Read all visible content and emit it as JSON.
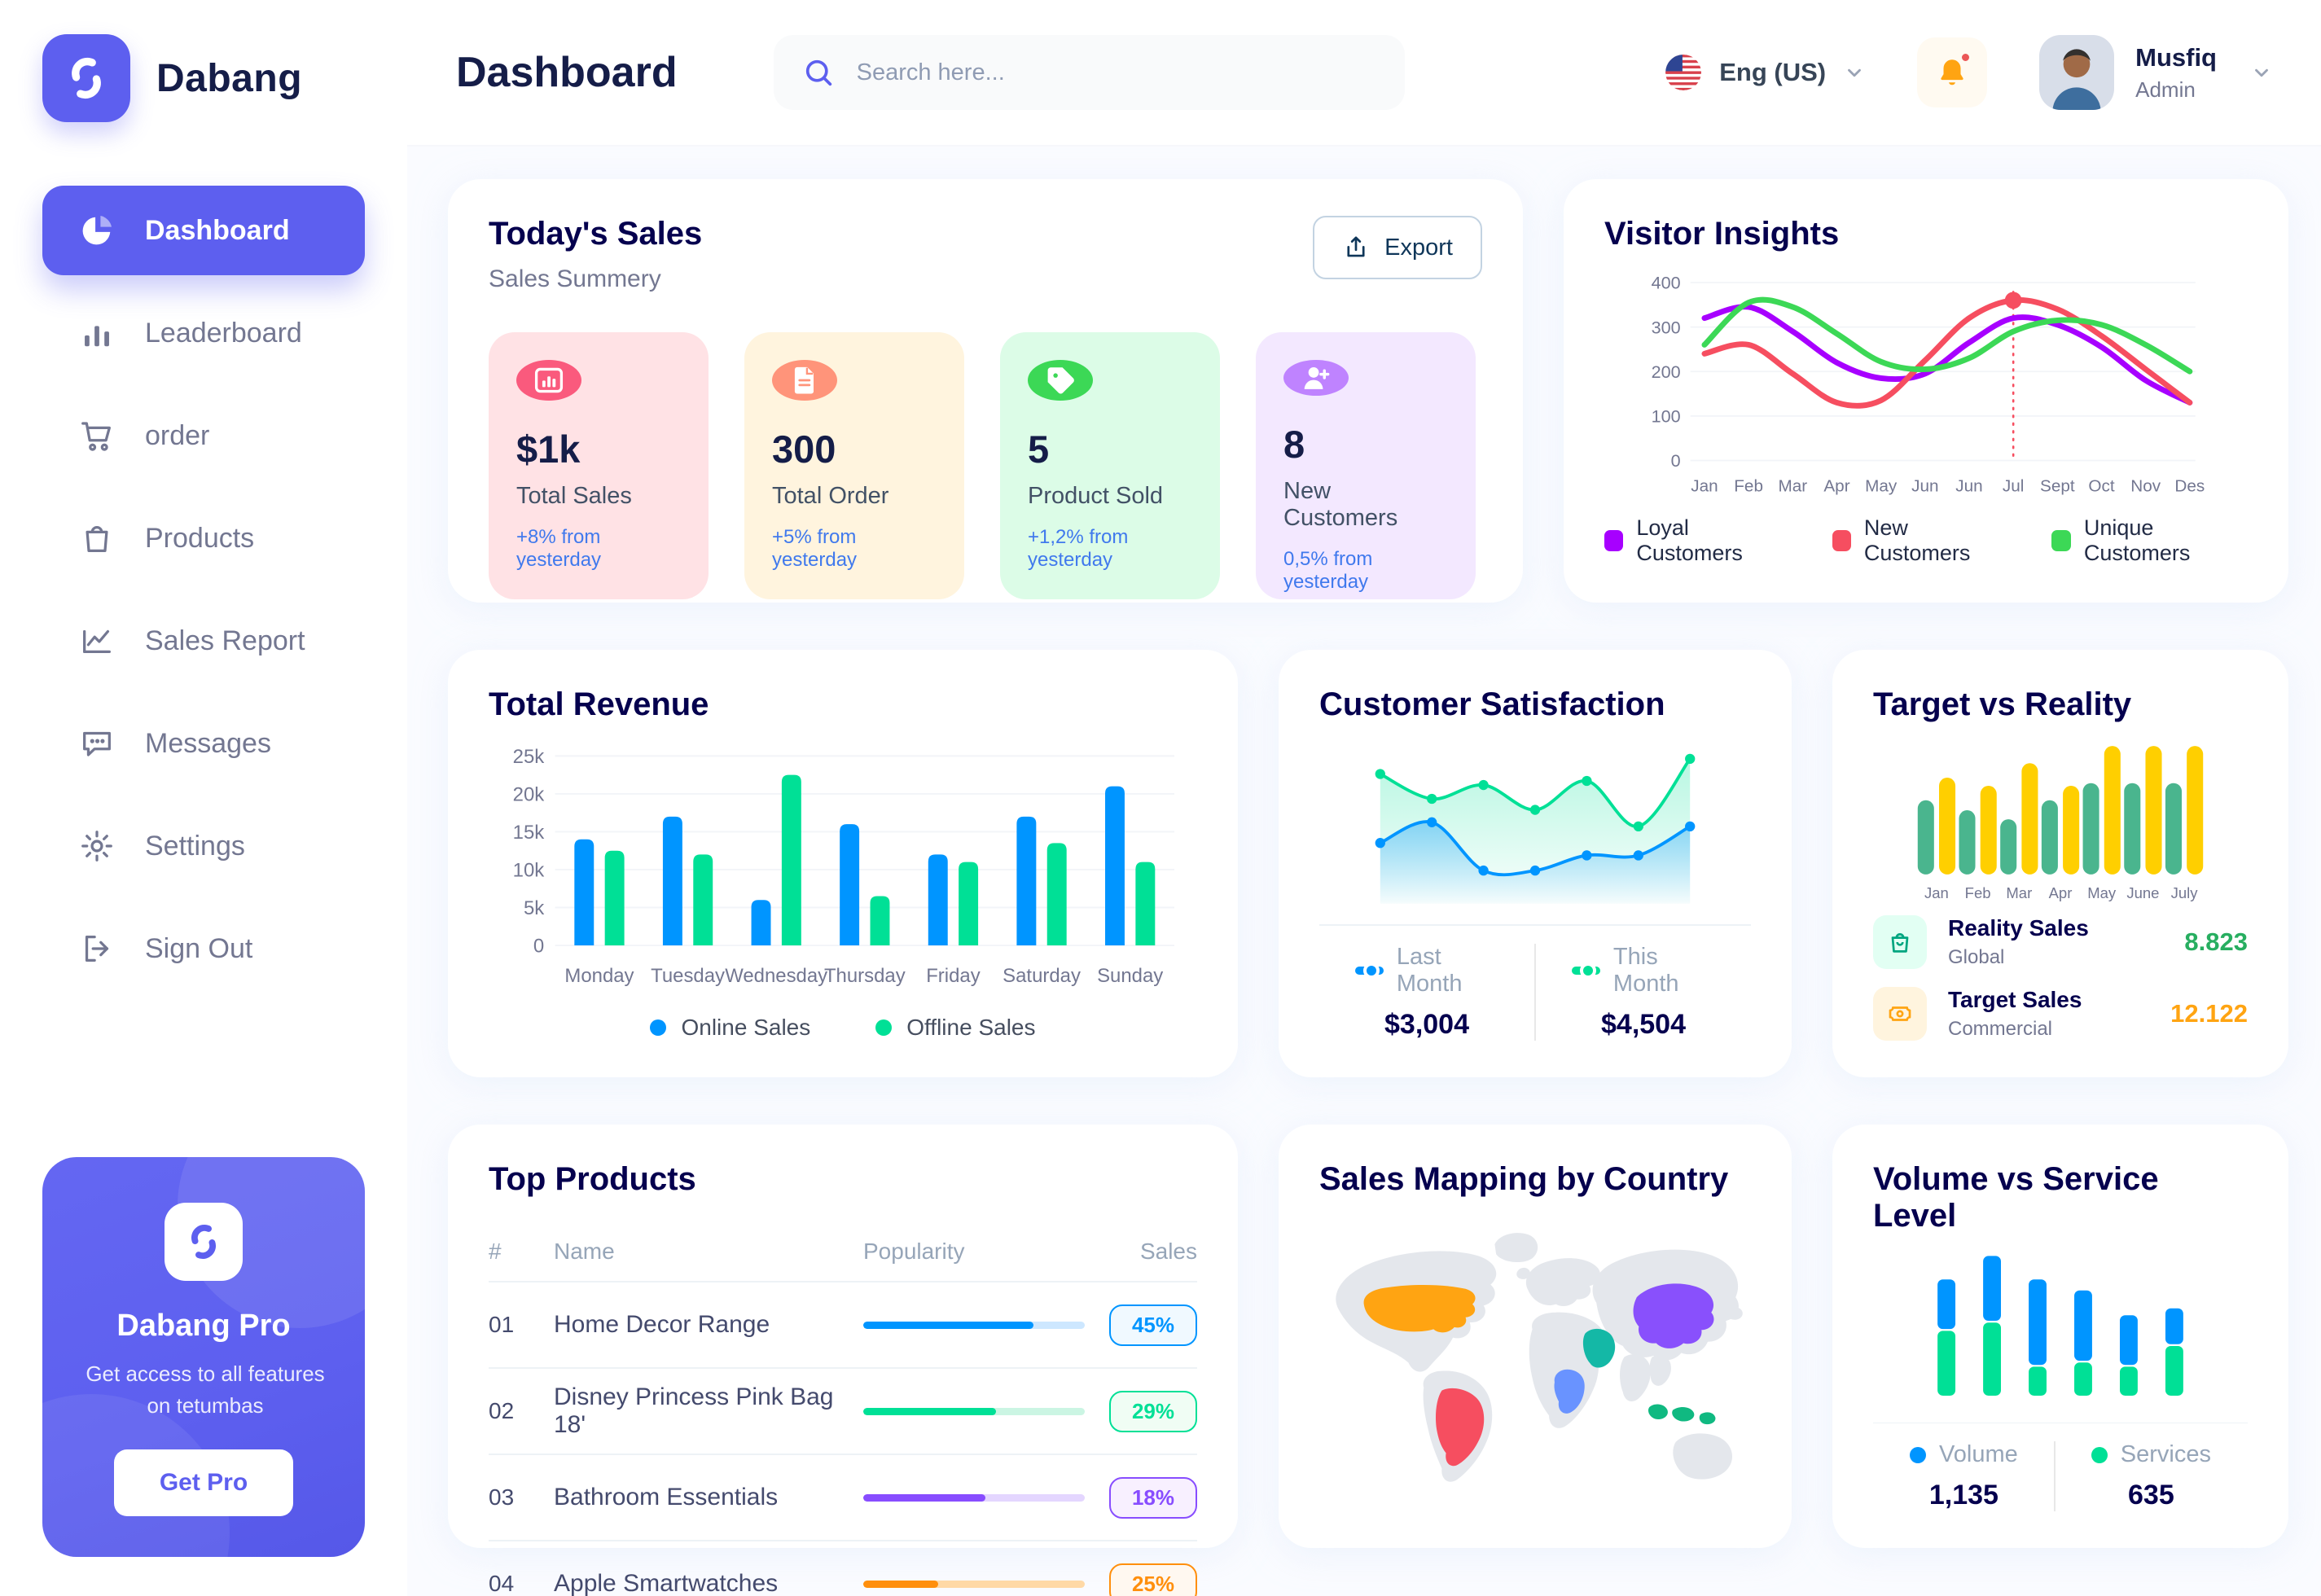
{
  "app": {
    "brand": "Dabang"
  },
  "header": {
    "title": "Dashboard",
    "search_placeholder": "Search here...",
    "language": "Eng (US)",
    "user": {
      "name": "Musfiq",
      "role": "Admin"
    }
  },
  "sidebar": {
    "items": [
      {
        "label": "Dashboard",
        "icon": "pie-chart-icon",
        "active": true
      },
      {
        "label": "Leaderboard",
        "icon": "bar-chart-icon",
        "active": false
      },
      {
        "label": "order",
        "icon": "cart-icon",
        "active": false
      },
      {
        "label": "Products",
        "icon": "bag-icon",
        "active": false
      },
      {
        "label": "Sales Report",
        "icon": "line-chart-icon",
        "active": false
      },
      {
        "label": "Messages",
        "icon": "message-icon",
        "active": false
      },
      {
        "label": "Settings",
        "icon": "gear-icon",
        "active": false
      },
      {
        "label": "Sign Out",
        "icon": "sign-out-icon",
        "active": false
      }
    ],
    "pro": {
      "title": "Dabang Pro",
      "description": "Get access to all features on tetumbas",
      "cta": "Get Pro"
    }
  },
  "today_sales": {
    "title": "Today's Sales",
    "subtitle": "Sales Summery",
    "export_label": "Export",
    "change_color": "#4079ED",
    "cards": [
      {
        "value": "$1k",
        "label": "Total Sales",
        "change": "+8% from yesterday",
        "bg": "#FFE2E5",
        "icon_bg": "#FA5A7D",
        "icon": "stat-chart-icon"
      },
      {
        "value": "300",
        "label": "Total Order",
        "change": "+5% from yesterday",
        "bg": "#FFF4DE",
        "icon_bg": "#FF947A",
        "icon": "stat-file-icon"
      },
      {
        "value": "5",
        "label": "Product Sold",
        "change": "+1,2% from yesterday",
        "bg": "#DCFCE7",
        "icon_bg": "#3CD856",
        "icon": "stat-tag-icon"
      },
      {
        "value": "8",
        "label": "New Customers",
        "change": "0,5% from yesterday",
        "bg": "#F3E8FF",
        "icon_bg": "#BF83FF",
        "icon": "stat-user-icon"
      }
    ]
  },
  "chart_data": {
    "visitor_insights": {
      "type": "line",
      "title": "Visitor Insights",
      "x": [
        "Jan",
        "Feb",
        "Mar",
        "Apr",
        "May",
        "Jun",
        "Jun",
        "Jul",
        "Sept",
        "Oct",
        "Nov",
        "Des"
      ],
      "yticks": [
        0,
        100,
        200,
        300,
        400
      ],
      "ylim": [
        0,
        400
      ],
      "series": [
        {
          "name": "Loyal Customers",
          "color": "#A700FF",
          "values": [
            320,
            345,
            290,
            220,
            185,
            195,
            265,
            320,
            305,
            255,
            180,
            130
          ]
        },
        {
          "name": "New Customers",
          "color": "#F64E60",
          "values": [
            240,
            260,
            195,
            130,
            135,
            225,
            320,
            360,
            340,
            280,
            205,
            130
          ]
        },
        {
          "name": "Unique Customers",
          "color": "#3CD856",
          "values": [
            260,
            355,
            345,
            285,
            222,
            205,
            230,
            290,
            315,
            305,
            260,
            200
          ]
        }
      ],
      "marker": {
        "x_index": 7,
        "series": "New Customers",
        "value": 360
      }
    },
    "total_revenue": {
      "type": "bar",
      "title": "Total Revenue",
      "categories": [
        "Monday",
        "Tuesday",
        "Wednesday",
        "Thursday",
        "Friday",
        "Saturday",
        "Sunday"
      ],
      "yticks": [
        "0",
        "5k",
        "10k",
        "15k",
        "20k",
        "25k"
      ],
      "ymax": 25,
      "series": [
        {
          "name": "Online Sales",
          "color": "#0095FF",
          "values": [
            14,
            17,
            6,
            16,
            12,
            17,
            21
          ]
        },
        {
          "name": "Offline Sales",
          "color": "#00E096",
          "values": [
            12.5,
            12,
            22.5,
            6.5,
            11,
            13.5,
            11
          ]
        }
      ]
    },
    "customer_satisfaction": {
      "type": "area",
      "title": "Customer Satisfaction",
      "series": [
        {
          "name": "This Month",
          "color": "#00E096",
          "total": "$4,504",
          "values": [
            84,
            66,
            76,
            58,
            79,
            46,
            95
          ]
        },
        {
          "name": "Last Month",
          "color": "#0095FF",
          "total": "$3,004",
          "values": [
            34,
            49,
            14,
            14,
            25,
            25,
            46
          ]
        }
      ],
      "legend_order": [
        "Last Month",
        "This Month"
      ]
    },
    "target_vs_reality": {
      "type": "bar",
      "title": "Target vs Reality",
      "categories": [
        "Jan",
        "Feb",
        "Mar",
        "Apr",
        "May",
        "June",
        "July"
      ],
      "series": [
        {
          "name": "Reality Sales",
          "color": "#4AB58E",
          "values": [
            8.2,
            7.1,
            6.1,
            8.2,
            10.1,
            10.1,
            10.1
          ]
        },
        {
          "name": "Target Sales",
          "color": "#FFCF00",
          "values": [
            10.7,
            9.8,
            12.3,
            9.8,
            14.2,
            14.2,
            14.2
          ]
        }
      ],
      "legend": [
        {
          "name": "Reality Sales",
          "sub": "Global",
          "value": "8.823",
          "value_color": "#27AE60",
          "icon": "bag-small-icon",
          "icon_bg": "#E2FFF3",
          "icon_color": "#00A57F"
        },
        {
          "name": "Target Sales",
          "sub": "Commercial",
          "value": "12.122",
          "value_color": "#FFA412",
          "icon": "ticket-icon",
          "icon_bg": "#FFF4DE",
          "icon_color": "#FFA412"
        }
      ]
    },
    "volume_service_level": {
      "type": "stacked-bar",
      "title": "Volume vs Service Level",
      "series": [
        {
          "name": "Volume",
          "color": "#0095FF",
          "total": "1,135",
          "values": [
            36,
            47,
            62,
            51,
            36,
            26
          ]
        },
        {
          "name": "Services",
          "color": "#00E096",
          "total": "635",
          "values": [
            47,
            53,
            21,
            24,
            21,
            36
          ]
        }
      ]
    }
  },
  "top_products": {
    "title": "Top Products",
    "columns": [
      "#",
      "Name",
      "Popularity",
      "Sales"
    ],
    "rows": [
      {
        "id": "01",
        "name": "Home Decor Range",
        "popularity": 77,
        "sales": "45%",
        "color": "#0095FF",
        "track": "#CDE7FF",
        "badge_bg": "#F0F9FF"
      },
      {
        "id": "02",
        "name": "Disney Princess Pink Bag 18'",
        "popularity": 60,
        "sales": "29%",
        "color": "#00E096",
        "track": "#CBF5E3",
        "badge_bg": "#F0FDF4"
      },
      {
        "id": "03",
        "name": "Bathroom Essentials",
        "popularity": 55,
        "sales": "18%",
        "color": "#884DFF",
        "track": "#E4D6FF",
        "badge_bg": "#F8F0FF"
      },
      {
        "id": "04",
        "name": "Apple Smartwatches",
        "popularity": 34,
        "sales": "25%",
        "color": "#FF8F0D",
        "track": "#FFD9A6",
        "badge_bg": "#FFF8F0"
      }
    ]
  },
  "sales_map": {
    "title": "Sales Mapping by Country",
    "countries": [
      {
        "name": "United States",
        "color": "#FFA412"
      },
      {
        "name": "Brazil",
        "color": "#F64E60"
      },
      {
        "name": "China",
        "color": "#8950FC"
      },
      {
        "name": "Saudi Arabia",
        "color": "#14B8A6"
      },
      {
        "name": "DR Congo",
        "color": "#6993FF"
      },
      {
        "name": "Indonesia",
        "color": "#10B981"
      }
    ]
  }
}
